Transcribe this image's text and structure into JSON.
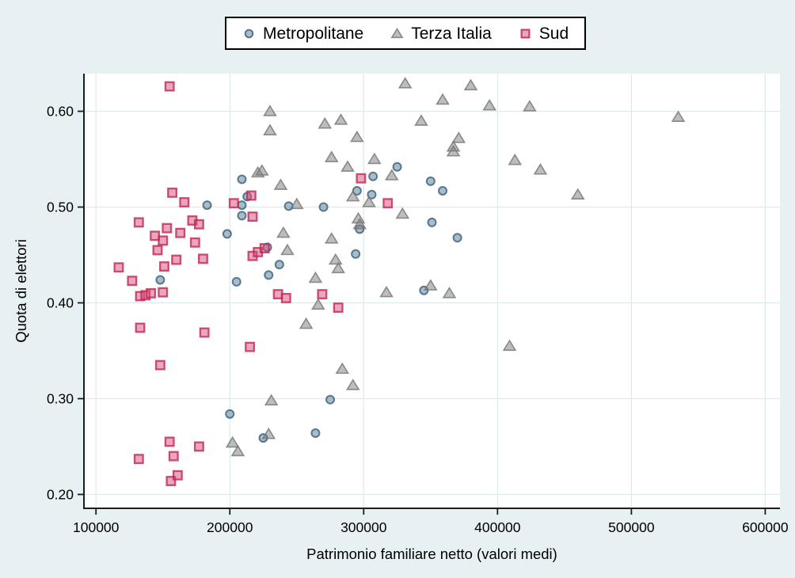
{
  "figure": {
    "background_color": "#e7f0f2",
    "plot_background": "#ffffff",
    "gridline_color": "#ddeaec",
    "axis_color": "#1c1c1c",
    "text_color": "#000000"
  },
  "legend": {
    "items": [
      {
        "label": "Metropolitane",
        "marker": "circle-icon"
      },
      {
        "label": "Terza Italia",
        "marker": "triangle-icon"
      },
      {
        "label": "Sud",
        "marker": "square-icon"
      }
    ]
  },
  "chart_data": {
    "type": "scatter",
    "title": "",
    "xlabel": "Patrimonio familiare netto (valori medi)",
    "ylabel": "Quota di elettori",
    "xlim": [
      100000,
      600000
    ],
    "ylim": [
      0.2,
      0.6
    ],
    "grid": true,
    "legend_position": "top-center",
    "xticks": [
      100000,
      200000,
      300000,
      400000,
      500000,
      600000
    ],
    "xtick_labels": [
      "100000",
      "200000",
      "300000",
      "400000",
      "500000",
      "600000"
    ],
    "yticks": [
      0.2,
      0.3,
      0.4,
      0.5,
      0.6
    ],
    "ytick_labels": [
      "0.20",
      "0.30",
      "0.40",
      "0.50",
      "0.60"
    ],
    "series": [
      {
        "name": "Metropolitane",
        "marker": "circle",
        "fill": "#537993",
        "stroke": "#375e79",
        "points": [
          [
            148000,
            0.424
          ],
          [
            183000,
            0.502
          ],
          [
            198000,
            0.472
          ],
          [
            200000,
            0.284
          ],
          [
            205000,
            0.422
          ],
          [
            209000,
            0.529
          ],
          [
            209000,
            0.502
          ],
          [
            209000,
            0.491
          ],
          [
            213000,
            0.511
          ],
          [
            225000,
            0.259
          ],
          [
            228000,
            0.458
          ],
          [
            229000,
            0.429
          ],
          [
            237000,
            0.44
          ],
          [
            244000,
            0.501
          ],
          [
            264000,
            0.264
          ],
          [
            270000,
            0.5
          ],
          [
            275000,
            0.299
          ],
          [
            294000,
            0.451
          ],
          [
            295000,
            0.517
          ],
          [
            297000,
            0.477
          ],
          [
            306000,
            0.513
          ],
          [
            307000,
            0.532
          ],
          [
            325000,
            0.542
          ],
          [
            345000,
            0.413
          ],
          [
            350000,
            0.527
          ],
          [
            351000,
            0.484
          ],
          [
            359000,
            0.517
          ],
          [
            370000,
            0.468
          ]
        ]
      },
      {
        "name": "Terza Italia",
        "marker": "triangle",
        "fill": "#7b7b7b",
        "stroke": "#747474",
        "points": [
          [
            202000,
            0.254
          ],
          [
            206000,
            0.245
          ],
          [
            221000,
            0.536
          ],
          [
            224000,
            0.538
          ],
          [
            229000,
            0.263
          ],
          [
            230000,
            0.6
          ],
          [
            230000,
            0.58
          ],
          [
            231000,
            0.298
          ],
          [
            238000,
            0.523
          ],
          [
            240000,
            0.473
          ],
          [
            243000,
            0.455
          ],
          [
            250000,
            0.503
          ],
          [
            257000,
            0.378
          ],
          [
            264000,
            0.426
          ],
          [
            266000,
            0.398
          ],
          [
            271000,
            0.587
          ],
          [
            276000,
            0.552
          ],
          [
            276000,
            0.467
          ],
          [
            279000,
            0.445
          ],
          [
            281000,
            0.436
          ],
          [
            283000,
            0.591
          ],
          [
            284000,
            0.331
          ],
          [
            288000,
            0.542
          ],
          [
            292000,
            0.511
          ],
          [
            292000,
            0.314
          ],
          [
            295000,
            0.573
          ],
          [
            296000,
            0.488
          ],
          [
            297000,
            0.482
          ],
          [
            304000,
            0.505
          ],
          [
            308000,
            0.55
          ],
          [
            317000,
            0.411
          ],
          [
            321000,
            0.533
          ],
          [
            329000,
            0.493
          ],
          [
            331000,
            0.629
          ],
          [
            343000,
            0.59
          ],
          [
            350000,
            0.418
          ],
          [
            359000,
            0.612
          ],
          [
            364000,
            0.41
          ],
          [
            367000,
            0.563
          ],
          [
            367000,
            0.558
          ],
          [
            371000,
            0.572
          ],
          [
            380000,
            0.627
          ],
          [
            394000,
            0.606
          ],
          [
            409000,
            0.355
          ],
          [
            413000,
            0.549
          ],
          [
            424000,
            0.605
          ],
          [
            432000,
            0.539
          ],
          [
            460000,
            0.513
          ],
          [
            535000,
            0.594
          ]
        ]
      },
      {
        "name": "Sud",
        "marker": "square",
        "fill": "#d74d79",
        "stroke": "#bf2756",
        "points": [
          [
            117000,
            0.437
          ],
          [
            127000,
            0.423
          ],
          [
            132000,
            0.484
          ],
          [
            132000,
            0.237
          ],
          [
            133000,
            0.407
          ],
          [
            133000,
            0.374
          ],
          [
            137000,
            0.408
          ],
          [
            141000,
            0.41
          ],
          [
            144000,
            0.47
          ],
          [
            146000,
            0.455
          ],
          [
            148000,
            0.335
          ],
          [
            150000,
            0.465
          ],
          [
            150000,
            0.411
          ],
          [
            151000,
            0.438
          ],
          [
            153000,
            0.478
          ],
          [
            155000,
            0.626
          ],
          [
            155000,
            0.255
          ],
          [
            156000,
            0.214
          ],
          [
            157000,
            0.515
          ],
          [
            158000,
            0.24
          ],
          [
            160000,
            0.445
          ],
          [
            161000,
            0.22
          ],
          [
            163000,
            0.473
          ],
          [
            166000,
            0.505
          ],
          [
            172000,
            0.486
          ],
          [
            174000,
            0.463
          ],
          [
            177000,
            0.482
          ],
          [
            177000,
            0.25
          ],
          [
            180000,
            0.446
          ],
          [
            181000,
            0.369
          ],
          [
            203000,
            0.504
          ],
          [
            215000,
            0.354
          ],
          [
            216000,
            0.512
          ],
          [
            217000,
            0.49
          ],
          [
            217000,
            0.449
          ],
          [
            221000,
            0.453
          ],
          [
            226000,
            0.457
          ],
          [
            236000,
            0.409
          ],
          [
            242000,
            0.405
          ],
          [
            269000,
            0.409
          ],
          [
            281000,
            0.395
          ],
          [
            298000,
            0.53
          ],
          [
            318000,
            0.504
          ]
        ]
      }
    ]
  }
}
